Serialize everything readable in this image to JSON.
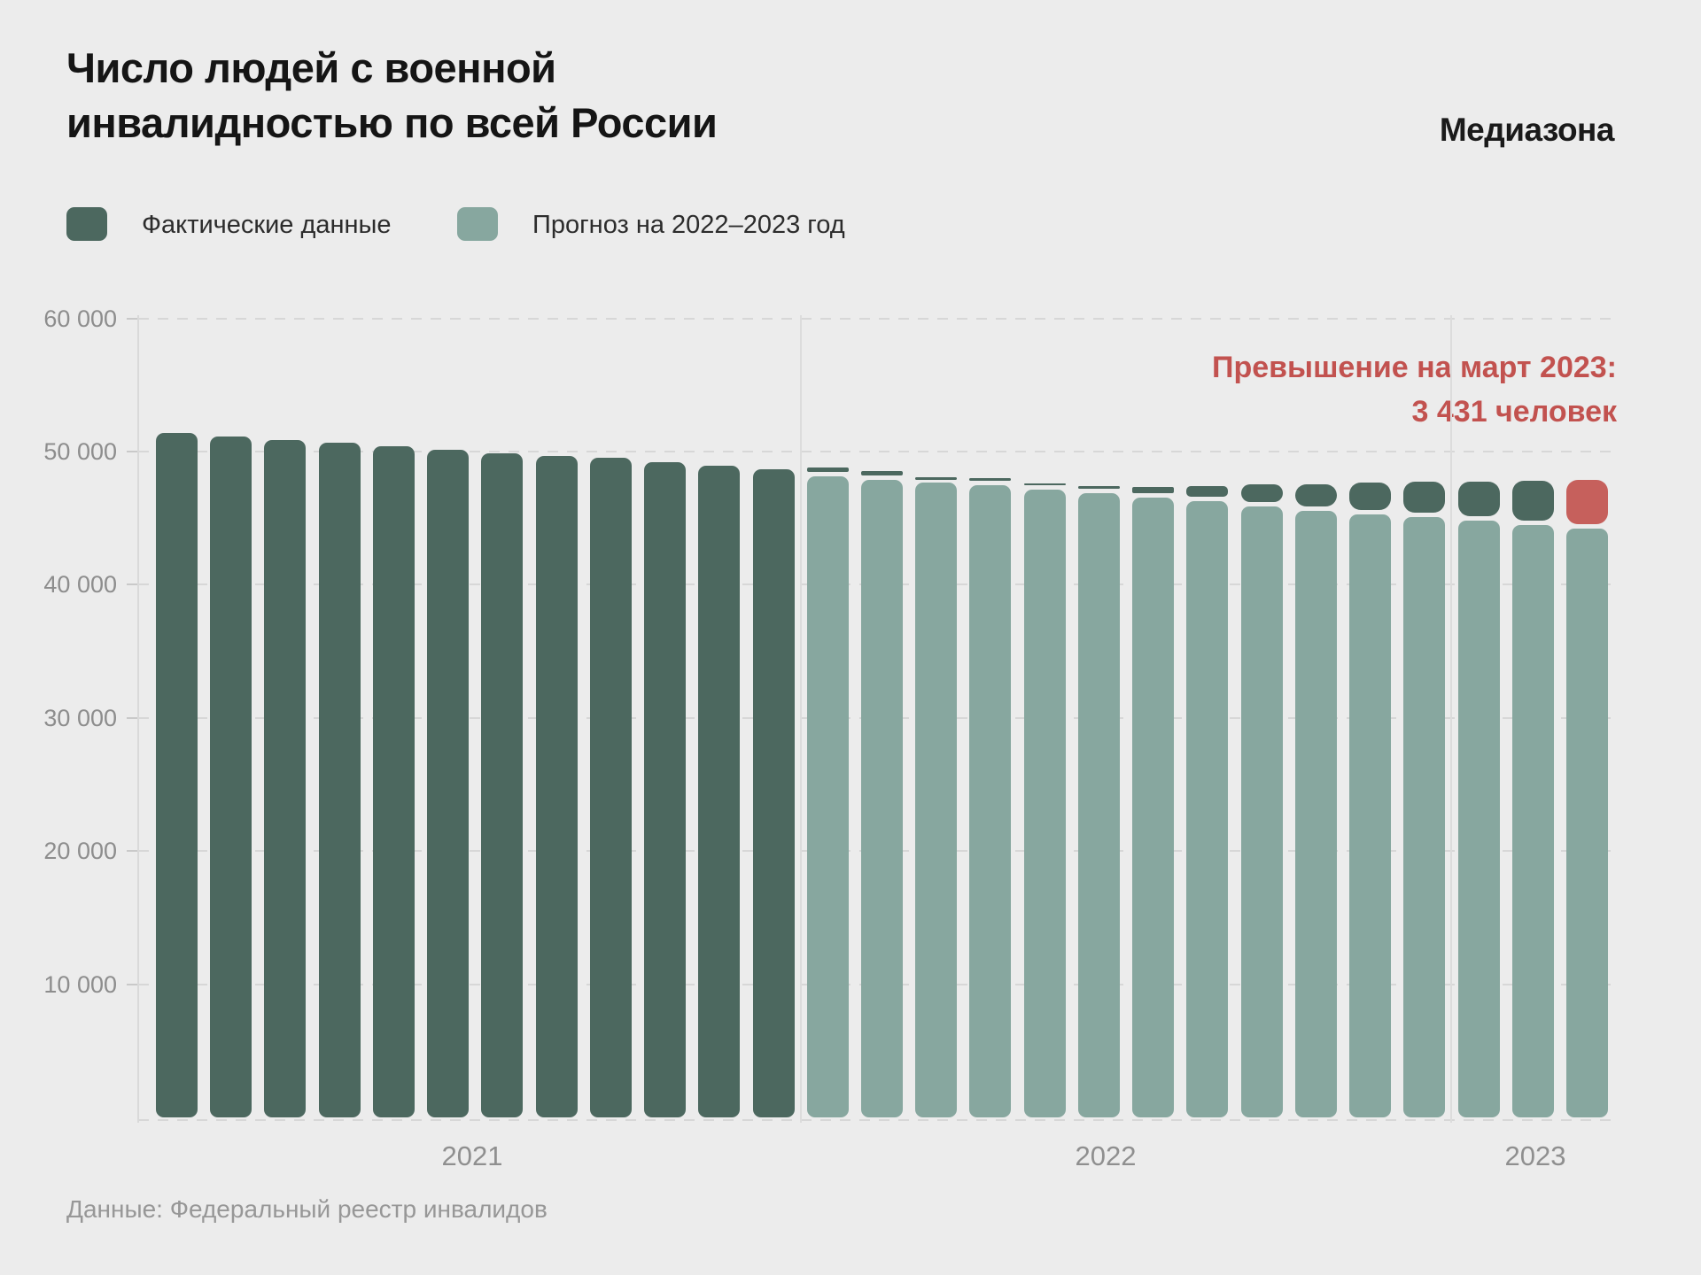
{
  "header": {
    "title_line1": "Число людей с военной",
    "title_line2": "инвалидностью по всей России",
    "logo": "Медиазона"
  },
  "legend": {
    "actual_label": "Фактические данные",
    "forecast_label": "Прогноз на 2022–2023 год"
  },
  "annotation": {
    "line1": "Превышение на март 2023:",
    "line2": "3 431 человек"
  },
  "source": "Данные: Федеральный реестр инвалидов",
  "colors": {
    "background": "#ececec",
    "actual_dark_green": "#4c685f",
    "forecast_sage": "#87a79f",
    "excess_red": "#c6605c",
    "annotation_red_text": "#c2524f",
    "gridline_gray": "#d7d7d7",
    "axis_text_gray": "#8d8d8d"
  },
  "chart_data": {
    "type": "bar",
    "title": "Число людей с военной инвалидностью по всей России",
    "xlabel": "",
    "ylabel": "",
    "ylim": [
      0,
      60000
    ],
    "grid": "dashed horizontal lines every 10 000, drawn behind bars",
    "legend_position": "top-left under title",
    "yticks": [
      {
        "value": 10000,
        "label": "10 000"
      },
      {
        "value": 20000,
        "label": "20 000"
      },
      {
        "value": 30000,
        "label": "30 000"
      },
      {
        "value": 40000,
        "label": "40 000"
      },
      {
        "value": 50000,
        "label": "50 000"
      },
      {
        "value": 60000,
        "label": "60 000"
      }
    ],
    "year_labels": [
      {
        "label": "2021",
        "first_month_index": 0,
        "last_month_index": 11
      },
      {
        "label": "2022",
        "first_month_index": 12,
        "last_month_index": 23
      },
      {
        "label": "2023",
        "first_month_index": 24,
        "last_month_index": 26
      }
    ],
    "months": [
      "2021-01",
      "2021-02",
      "2021-03",
      "2021-04",
      "2021-05",
      "2021-06",
      "2021-07",
      "2021-08",
      "2021-09",
      "2021-10",
      "2021-11",
      "2021-12",
      "2022-01",
      "2022-02",
      "2022-03",
      "2022-04",
      "2022-05",
      "2022-06",
      "2022-07",
      "2022-08",
      "2022-09",
      "2022-10",
      "2022-11",
      "2022-12",
      "2023-01",
      "2023-02",
      "2023-03"
    ],
    "series": [
      {
        "name": "Фактические данные",
        "values": [
          51400,
          51150,
          50850,
          50650,
          50400,
          50150,
          49900,
          49650,
          49550,
          49200,
          48950,
          48650,
          48550,
          48250,
          47780,
          47750,
          47350,
          47150,
          47100,
          47150,
          47250,
          47300,
          47400,
          47450,
          47500,
          47550,
          47631
        ]
      },
      {
        "name": "Прогноз на 2022–2023 год",
        "values": [
          null,
          null,
          null,
          null,
          null,
          null,
          null,
          null,
          null,
          null,
          null,
          null,
          48150,
          47900,
          47700,
          47450,
          47150,
          46850,
          46550,
          46250,
          45850,
          45550,
          45300,
          45050,
          44800,
          44450,
          44200
        ]
      }
    ],
    "excess_highlight": {
      "month": "2023-03",
      "excess_value": 3431,
      "note": "Превышение на март 2023: 3 431 человек"
    }
  }
}
